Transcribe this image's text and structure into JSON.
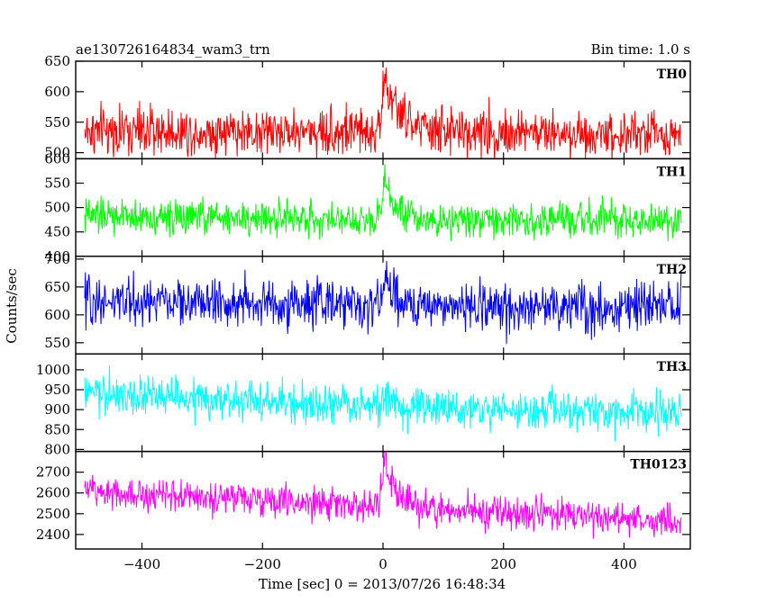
{
  "chart_data": {
    "type": "line",
    "title": "ae130726164834_wam3_trn",
    "subtitle": "Bin time: 1.0 s",
    "xlabel": "Time [sec] 0 = 2013/07/26 16:48:34",
    "ylabel": "Counts/sec",
    "xlim": [
      -510,
      510
    ],
    "x_ticks": [
      -400,
      -200,
      0,
      200,
      400
    ],
    "x_tick_labels": [
      "−400",
      "−200",
      "0",
      "200",
      "400"
    ],
    "bin_time_s": 1.0,
    "x_range": [
      -495,
      495
    ],
    "grid": false,
    "panels": [
      {
        "name": "TH0",
        "color": "#ff0000",
        "ylim": [
          490,
          650
        ],
        "yticks": [
          500,
          550,
          600,
          650
        ],
        "baseline": 535,
        "noise": 28,
        "drift": [
          0,
          0,
          -5
        ],
        "flare_peak": 625,
        "flare_decay_s": 25
      },
      {
        "name": "TH1",
        "color": "#00ff00",
        "ylim": [
          400,
          600
        ],
        "yticks": [
          400,
          450,
          500,
          550,
          600
        ],
        "baseline": 482,
        "noise": 25,
        "drift": [
          0,
          -6,
          -10
        ],
        "flare_peak": 580,
        "flare_decay_s": 18
      },
      {
        "name": "TH2",
        "color": "#0000ff",
        "ylim": [
          530,
          705
        ],
        "yticks": [
          550,
          600,
          650,
          700
        ],
        "baseline": 617,
        "noise": 30,
        "drift": [
          8,
          0,
          -5
        ],
        "flare_peak": 670,
        "flare_decay_s": 15
      },
      {
        "name": "TH3",
        "color": "#00ffff",
        "ylim": [
          795,
          1040
        ],
        "yticks": [
          800,
          850,
          900,
          950,
          1000
        ],
        "baseline": 905,
        "noise": 35,
        "drift": [
          35,
          0,
          -15
        ],
        "flare_peak": 950,
        "flare_decay_s": 10
      },
      {
        "name": "TH0123",
        "color": "#ff00ff",
        "ylim": [
          2330,
          2800
        ],
        "yticks": [
          2400,
          2500,
          2600,
          2700
        ],
        "baseline": 2530,
        "noise": 55,
        "drift": [
          85,
          0,
          -60
        ],
        "flare_peak": 2760,
        "flare_decay_s": 22
      }
    ]
  }
}
